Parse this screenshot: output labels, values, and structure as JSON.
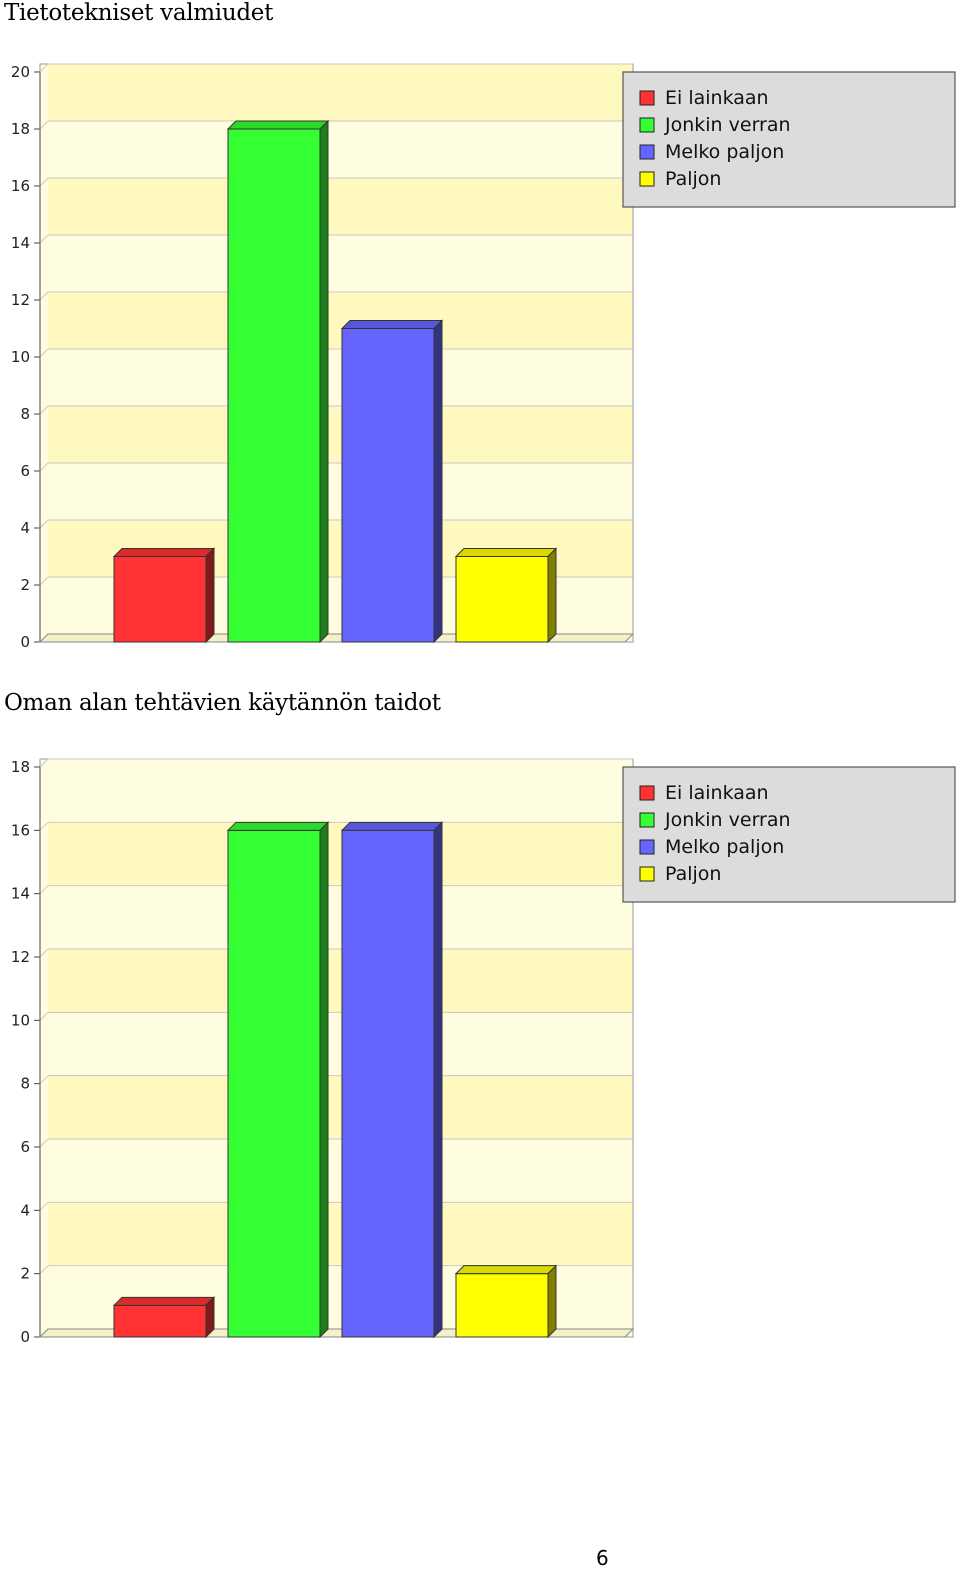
{
  "chart_data": [
    {
      "type": "bar",
      "title": "Tietotekniset valmiudet",
      "categories": [
        "Ei lainkaan",
        "Jonkin verran",
        "Melko paljon",
        "Paljon"
      ],
      "values": [
        3,
        18,
        11,
        3
      ],
      "colors": [
        "#ff3333",
        "#33ff33",
        "#6666ff",
        "#ffff00"
      ],
      "ylim": [
        0,
        20
      ],
      "yticks": [
        0,
        2,
        4,
        6,
        8,
        10,
        12,
        14,
        16,
        18,
        20
      ],
      "grid": true,
      "legend": "top-right",
      "legend_entries": [
        "Ei lainkaan",
        "Jonkin verran",
        "Melko paljon",
        "Paljon"
      ]
    },
    {
      "type": "bar",
      "title": "Oman alan tehtävien käytännön taidot",
      "categories": [
        "Ei lainkaan",
        "Jonkin verran",
        "Melko paljon",
        "Paljon"
      ],
      "values": [
        1,
        16,
        16,
        2
      ],
      "colors": [
        "#ff3333",
        "#33ff33",
        "#6666ff",
        "#ffff00"
      ],
      "ylim": [
        0,
        18
      ],
      "yticks": [
        0,
        2,
        4,
        6,
        8,
        10,
        12,
        14,
        16,
        18
      ],
      "grid": true,
      "legend": "top-right",
      "legend_entries": [
        "Ei lainkaan",
        "Jonkin verran",
        "Melko paljon",
        "Paljon"
      ]
    }
  ],
  "page_number": "6"
}
